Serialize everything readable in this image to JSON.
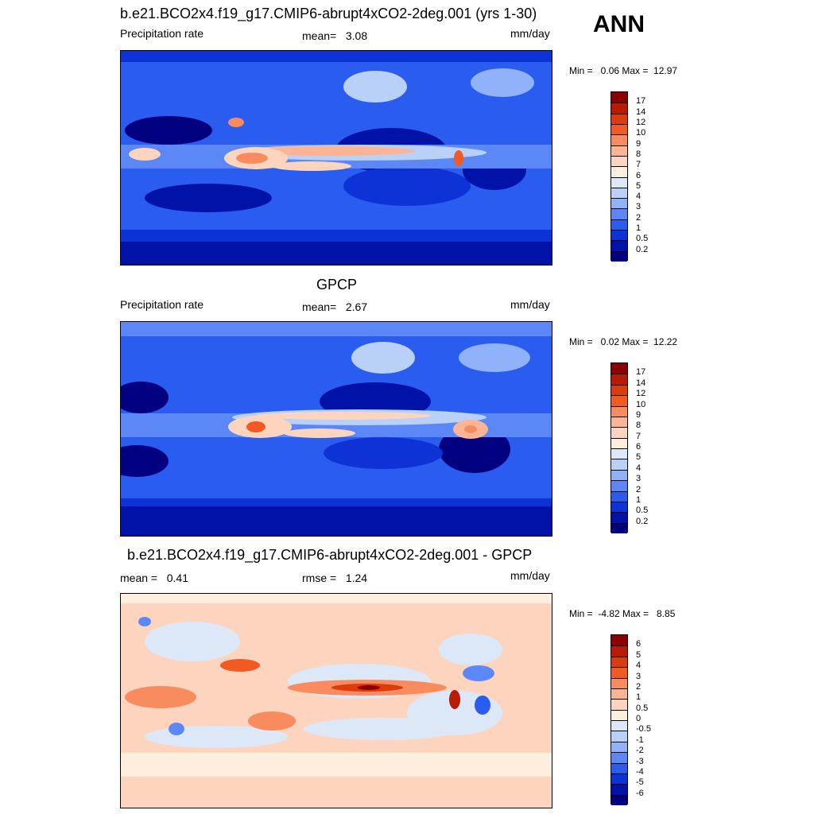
{
  "season": "ANN",
  "panels": [
    {
      "title": "b.e21.BCO2x4.f19_g17.CMIP6-abrupt4xCO2-2deg.001 (yrs 1-30)",
      "left_label": "Precipitation rate",
      "center_label": "mean=   3.08",
      "right_label": "mm/day",
      "minmax": "Min =   0.06 Max =  12.97",
      "colorbar_levels": [
        "17",
        "14",
        "12",
        "10",
        "9",
        "8",
        "7",
        "6",
        "5",
        "4",
        "3",
        "2",
        "1",
        "0.5",
        "0.2"
      ],
      "colorbar_colors": [
        "#8b0000",
        "#b81c00",
        "#dc3b0c",
        "#f25a22",
        "#f98c5e",
        "#fdb495",
        "#fdd5bf",
        "#fdeede",
        "#dce8f8",
        "#b9d1f8",
        "#8fb2fa",
        "#5c88f7",
        "#2a5cf0",
        "#0d33d6",
        "#0012a8",
        "#000080"
      ]
    },
    {
      "title": "GPCP",
      "left_label": "Precipitation rate",
      "center_label": "mean=   2.67",
      "right_label": "mm/day",
      "minmax": "Min =   0.02 Max =  12.22",
      "colorbar_levels": [
        "17",
        "14",
        "12",
        "10",
        "9",
        "8",
        "7",
        "6",
        "5",
        "4",
        "3",
        "2",
        "1",
        "0.5",
        "0.2"
      ],
      "colorbar_colors": [
        "#8b0000",
        "#b81c00",
        "#dc3b0c",
        "#f25a22",
        "#f98c5e",
        "#fdb495",
        "#fdd5bf",
        "#fdeede",
        "#dce8f8",
        "#b9d1f8",
        "#8fb2fa",
        "#5c88f7",
        "#2a5cf0",
        "#0d33d6",
        "#0012a8",
        "#000080"
      ]
    },
    {
      "title": "b.e21.BCO2x4.f19_g17.CMIP6-abrupt4xCO2-2deg.001 - GPCP",
      "left_label": "mean =   0.41",
      "center_label": "rmse =   1.24",
      "right_label": "mm/day",
      "minmax": "Min =  -4.82 Max =   8.85",
      "colorbar_levels": [
        "6",
        "5",
        "4",
        "3",
        "2",
        "1",
        "0.5",
        "0",
        "-0.5",
        "-1",
        "-2",
        "-3",
        "-4",
        "-5",
        "-6"
      ],
      "colorbar_colors": [
        "#8b0000",
        "#b81c00",
        "#dc3b0c",
        "#f25a22",
        "#f98c5e",
        "#fdb495",
        "#fdd5bf",
        "#fdeede",
        "#dce8f8",
        "#b9d1f8",
        "#8fb2fa",
        "#5c88f7",
        "#2a5cf0",
        "#0d33d6",
        "#0012a8",
        "#000080"
      ]
    }
  ]
}
